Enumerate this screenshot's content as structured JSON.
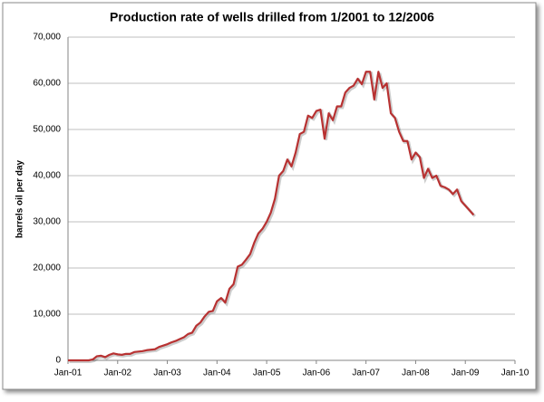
{
  "chart_data": {
    "type": "line",
    "title": "Production  rate of wells drilled from 1/2001 to 12/2006",
    "y_label": "barrels oil per day",
    "categories": [
      "Jan-01",
      null,
      null,
      null,
      null,
      null,
      null,
      null,
      null,
      null,
      null,
      null,
      "Jan-02",
      null,
      null,
      null,
      null,
      null,
      null,
      null,
      null,
      null,
      null,
      null,
      "Jan-03",
      null,
      null,
      null,
      null,
      null,
      null,
      null,
      null,
      null,
      null,
      null,
      "Jan-04",
      null,
      null,
      null,
      null,
      null,
      null,
      null,
      null,
      null,
      null,
      null,
      "Jan-05",
      null,
      null,
      null,
      null,
      null,
      null,
      null,
      null,
      null,
      null,
      null,
      "Jan-06",
      null,
      null,
      null,
      null,
      null,
      null,
      null,
      null,
      null,
      null,
      null,
      "Jan-07",
      null,
      null,
      null,
      null,
      null,
      null,
      null,
      null,
      null,
      null,
      null,
      "Jan-08",
      null,
      null,
      null,
      null,
      null,
      null,
      null,
      null,
      null,
      null,
      null,
      "Jan-09",
      null,
      null,
      null,
      null,
      null,
      null,
      null,
      null,
      null,
      null,
      null,
      "Jan-10"
    ],
    "series": [
      {
        "name": "barrels oil per day",
        "color": "#b83232",
        "values": [
          0,
          0,
          0,
          0,
          0,
          0,
          200,
          900,
          1000,
          700,
          1200,
          1500,
          1300,
          1200,
          1400,
          1400,
          1800,
          1900,
          2000,
          2200,
          2300,
          2400,
          2900,
          3200,
          3500,
          3900,
          4200,
          4600,
          5000,
          5700,
          6000,
          7500,
          8200,
          9500,
          10500,
          10700,
          12800,
          13500,
          12500,
          15500,
          16500,
          20300,
          20700,
          21800,
          23000,
          25500,
          27500,
          28500,
          30000,
          32000,
          35000,
          40000,
          41000,
          43500,
          42000,
          45000,
          49000,
          49500,
          53000,
          52500,
          54000,
          54300,
          48000,
          53500,
          52000,
          55000,
          55000,
          58000,
          59000,
          59500,
          61000,
          59800,
          62500,
          62500,
          56500,
          62500,
          59000,
          60000,
          53500,
          52500,
          49500,
          47500,
          47500,
          43500,
          45000,
          44000,
          39500,
          41500,
          39500,
          40000,
          37800,
          37500,
          37000,
          36000,
          37000,
          34500,
          33500,
          32500,
          31500,
          null,
          null,
          null,
          null,
          null,
          null,
          null,
          null,
          null,
          null
        ]
      }
    ],
    "ylim": [
      0,
      70000
    ],
    "yticks": [
      0,
      {
        "value": 10000,
        "label": "10,000"
      },
      {
        "value": 20000,
        "label": "20,000"
      },
      {
        "value": 30000,
        "label": "30,000"
      },
      {
        "value": 40000,
        "label": "40,000"
      },
      {
        "value": 50000,
        "label": "50,000"
      },
      {
        "value": 60000,
        "label": "60,000"
      },
      {
        "value": 70000,
        "label": "70,000"
      }
    ],
    "grid": true
  }
}
